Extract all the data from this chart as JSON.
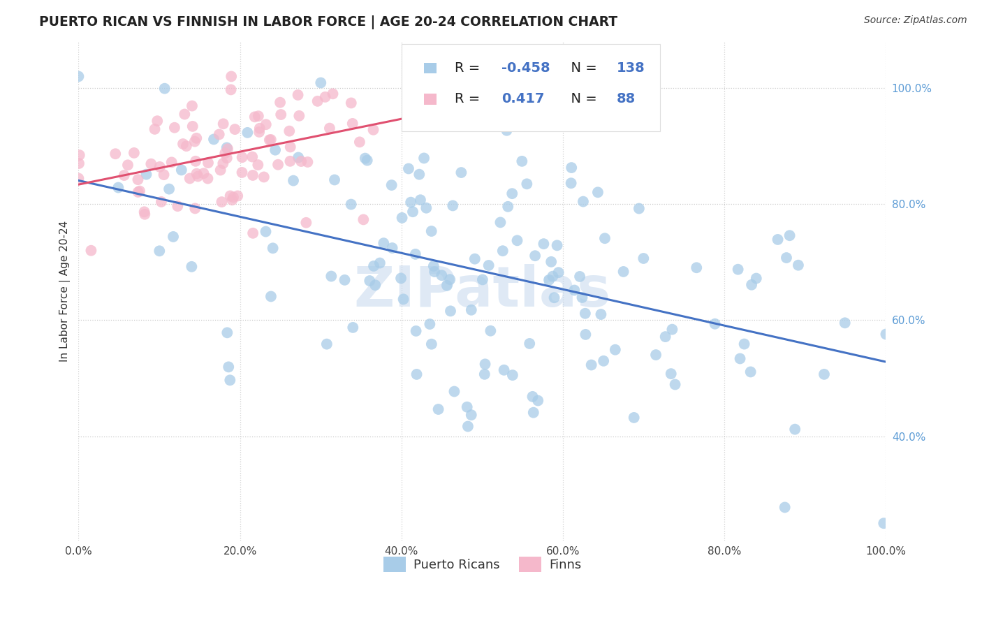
{
  "title": "PUERTO RICAN VS FINNISH IN LABOR FORCE | AGE 20-24 CORRELATION CHART",
  "source": "Source: ZipAtlas.com",
  "ylabel": "In Labor Force | Age 20-24",
  "xlim": [
    0.0,
    1.0
  ],
  "ylim": [
    0.22,
    1.08
  ],
  "x_ticks": [
    0.0,
    0.2,
    0.4,
    0.6,
    0.8,
    1.0
  ],
  "x_ticklabels": [
    "0.0%",
    "20.0%",
    "40.0%",
    "60.0%",
    "80.0%",
    "100.0%"
  ],
  "y_ticks": [
    0.4,
    0.6,
    0.8,
    1.0
  ],
  "y_ticklabels": [
    "40.0%",
    "60.0%",
    "80.0%",
    "100.0%"
  ],
  "blue_R": "-0.458",
  "blue_N": "138",
  "pink_R": "0.417",
  "pink_N": "88",
  "blue_color": "#a8cce8",
  "pink_color": "#f5b8cb",
  "blue_line_color": "#4472c4",
  "pink_line_color": "#e05070",
  "watermark": "ZIPatlas",
  "title_color": "#222222",
  "source_color": "#444444",
  "ytick_color": "#5b9bd5",
  "xtick_color": "#444444",
  "background_color": "#ffffff",
  "grid_color": "#cccccc",
  "legend_R_color": "#000000",
  "legend_val_color": "#4472c4",
  "legend_N_color": "#4472c4"
}
